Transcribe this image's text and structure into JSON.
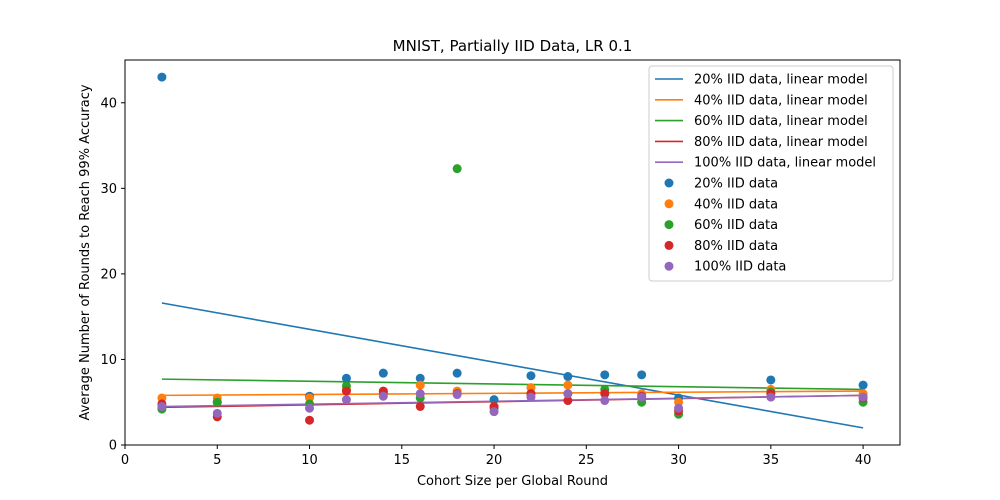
{
  "chart_data": {
    "type": "scatter",
    "title": "MNIST, Partially IID Data, LR 0.1",
    "xlabel": "Cohort Size per Global Round",
    "ylabel": "Average Number of Rounds to Reach 99% Accuracy",
    "xlim": [
      0,
      42
    ],
    "ylim": [
      0,
      45
    ],
    "xticks": [
      0,
      5,
      10,
      15,
      20,
      25,
      30,
      35,
      40
    ],
    "yticks": [
      0,
      10,
      20,
      30,
      40
    ],
    "grid": false,
    "legend_position": "top-right",
    "x": [
      2,
      5,
      10,
      12,
      14,
      16,
      18,
      20,
      22,
      24,
      26,
      28,
      30,
      35,
      40
    ],
    "series": [
      {
        "name": "20% IID data",
        "color": "#1f77b4",
        "values": [
          43.0,
          5.0,
          5.7,
          7.8,
          8.4,
          7.8,
          8.4,
          5.3,
          8.1,
          8.0,
          8.2,
          8.2,
          5.5,
          7.6,
          7.0
        ]
      },
      {
        "name": "40% IID data",
        "color": "#ff7f0e",
        "values": [
          5.5,
          5.5,
          5.5,
          6.5,
          6.2,
          7.0,
          6.3,
          4.5,
          6.7,
          7.0,
          6.1,
          6.0,
          5.0,
          6.5,
          6.0
        ]
      },
      {
        "name": "60% IID data",
        "color": "#2ca02c",
        "values": [
          4.2,
          5.0,
          4.8,
          6.9,
          6.0,
          5.5,
          32.3,
          4.3,
          6.0,
          6.0,
          6.5,
          5.0,
          3.6,
          6.2,
          5.0
        ]
      },
      {
        "name": "80% IID data",
        "color": "#d62728",
        "values": [
          4.8,
          3.3,
          2.9,
          6.3,
          6.3,
          4.5,
          6.0,
          4.5,
          6.0,
          5.2,
          6.0,
          5.7,
          4.0,
          6.0,
          5.5
        ]
      },
      {
        "name": "100% IID data",
        "color": "#9467bd",
        "values": [
          4.5,
          3.7,
          4.3,
          5.3,
          5.7,
          6.0,
          5.9,
          3.9,
          5.6,
          6.0,
          5.2,
          5.6,
          4.3,
          5.6,
          5.6
        ]
      }
    ],
    "linear_models": [
      {
        "name": "20% IID data, linear model",
        "color": "#1f77b4",
        "x": [
          2,
          40
        ],
        "y": [
          16.6,
          2.0
        ]
      },
      {
        "name": "40% IID data, linear model",
        "color": "#ff7f0e",
        "x": [
          2,
          40
        ],
        "y": [
          5.8,
          6.3
        ]
      },
      {
        "name": "60% IID data, linear model",
        "color": "#2ca02c",
        "x": [
          2,
          40
        ],
        "y": [
          7.7,
          6.5
        ]
      },
      {
        "name": "80% IID data, linear model",
        "color": "#d62728",
        "x": [
          2,
          40
        ],
        "y": [
          4.4,
          5.8
        ]
      },
      {
        "name": "100% IID data, linear model",
        "color": "#9467bd",
        "x": [
          2,
          40
        ],
        "y": [
          4.5,
          5.8
        ]
      }
    ]
  }
}
